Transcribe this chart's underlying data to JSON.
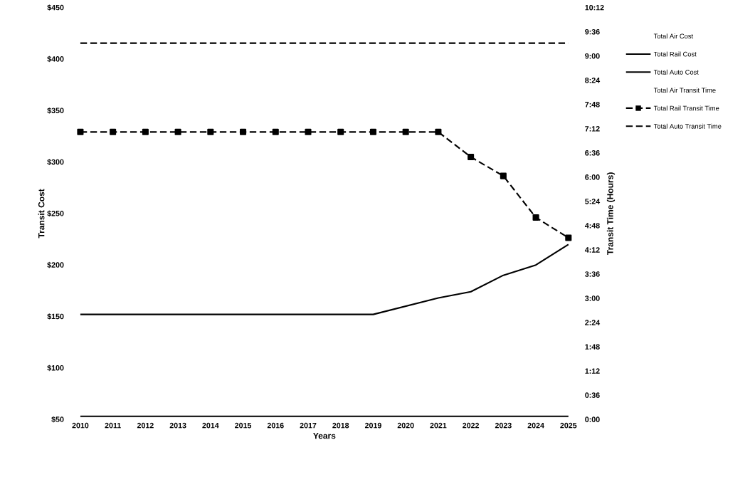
{
  "chart_data": {
    "type": "line",
    "xlabel": "Years",
    "ylabel": "Transit Cost",
    "y2label": "Transit Time (Hours)",
    "categories": [
      "2010",
      "2011",
      "2012",
      "2013",
      "2014",
      "2015",
      "2016",
      "2017",
      "2018",
      "2019",
      "2020",
      "2021",
      "2022",
      "2023",
      "2024",
      "2025"
    ],
    "ylim": [
      50,
      450
    ],
    "yticks": [
      {
        "value": 50,
        "label": "$50"
      },
      {
        "value": 100,
        "label": "$100"
      },
      {
        "value": 150,
        "label": "$150"
      },
      {
        "value": 200,
        "label": "$200"
      },
      {
        "value": 250,
        "label": "$250"
      },
      {
        "value": 300,
        "label": "$300"
      },
      {
        "value": 350,
        "label": "$350"
      },
      {
        "value": 400,
        "label": "$400"
      },
      {
        "value": 450,
        "label": "$450"
      }
    ],
    "y2lim": [
      0,
      10.2
    ],
    "y2ticks": [
      {
        "value": 0,
        "label": "0:00"
      },
      {
        "value": 0.6,
        "label": "0:36"
      },
      {
        "value": 1.2,
        "label": "1:12"
      },
      {
        "value": 1.8,
        "label": "1:48"
      },
      {
        "value": 2.4,
        "label": "2:24"
      },
      {
        "value": 3,
        "label": "3:00"
      },
      {
        "value": 3.6,
        "label": "3:36"
      },
      {
        "value": 4.2,
        "label": "4:12"
      },
      {
        "value": 4.8,
        "label": "4:48"
      },
      {
        "value": 5.4,
        "label": "5:24"
      },
      {
        "value": 6,
        "label": "6:00"
      },
      {
        "value": 6.6,
        "label": "6:36"
      },
      {
        "value": 7.2,
        "label": "7:12"
      },
      {
        "value": 7.8,
        "label": "7:48"
      },
      {
        "value": 8.4,
        "label": "8:24"
      },
      {
        "value": 9,
        "label": "9:00"
      },
      {
        "value": 9.6,
        "label": "9:36"
      },
      {
        "value": 10.2,
        "label": "10:12"
      }
    ],
    "legend": "right",
    "series": [
      {
        "name": "Total Air Cost",
        "values": [
          null,
          null,
          null,
          null,
          null,
          null,
          null,
          null,
          null,
          null,
          null,
          null,
          null,
          null,
          null,
          null
        ]
      },
      {
        "name": "Total Rail Cost",
        "color": "#000000",
        "line_style": "solid",
        "values": [
          152,
          152,
          152,
          152,
          152,
          152,
          152,
          152,
          152,
          152,
          160,
          168,
          174,
          190,
          200,
          220
        ]
      },
      {
        "name": "Total Auto Cost",
        "color": "#000000",
        "line_style": "solid",
        "values": [
          53,
          53,
          53,
          53,
          53,
          53,
          53,
          53,
          53,
          53,
          53,
          53,
          53,
          53,
          53,
          53
        ]
      },
      {
        "name": "Total Air Transit Time",
        "axis": "y2",
        "values": [
          null,
          null,
          null,
          null,
          null,
          null,
          null,
          null,
          null,
          null,
          null,
          null,
          null,
          null,
          null,
          null
        ]
      },
      {
        "name": "Total Rail Transit Time",
        "color": "#000000",
        "line_style": "dashed",
        "marker": "square",
        "axis": "y2",
        "values": [
          7.12,
          7.12,
          7.12,
          7.12,
          7.12,
          7.12,
          7.12,
          7.12,
          7.12,
          7.12,
          7.12,
          7.12,
          6.5,
          6.03,
          5.0,
          4.5
        ]
      },
      {
        "name": "Total Auto Transit Time",
        "color": "#000000",
        "line_style": "dashed",
        "axis": "y2",
        "values": [
          9.32,
          9.32,
          9.32,
          9.32,
          9.32,
          9.32,
          9.32,
          9.32,
          9.32,
          9.32,
          9.32,
          9.32,
          9.32,
          9.32,
          9.32,
          9.32
        ]
      }
    ]
  }
}
